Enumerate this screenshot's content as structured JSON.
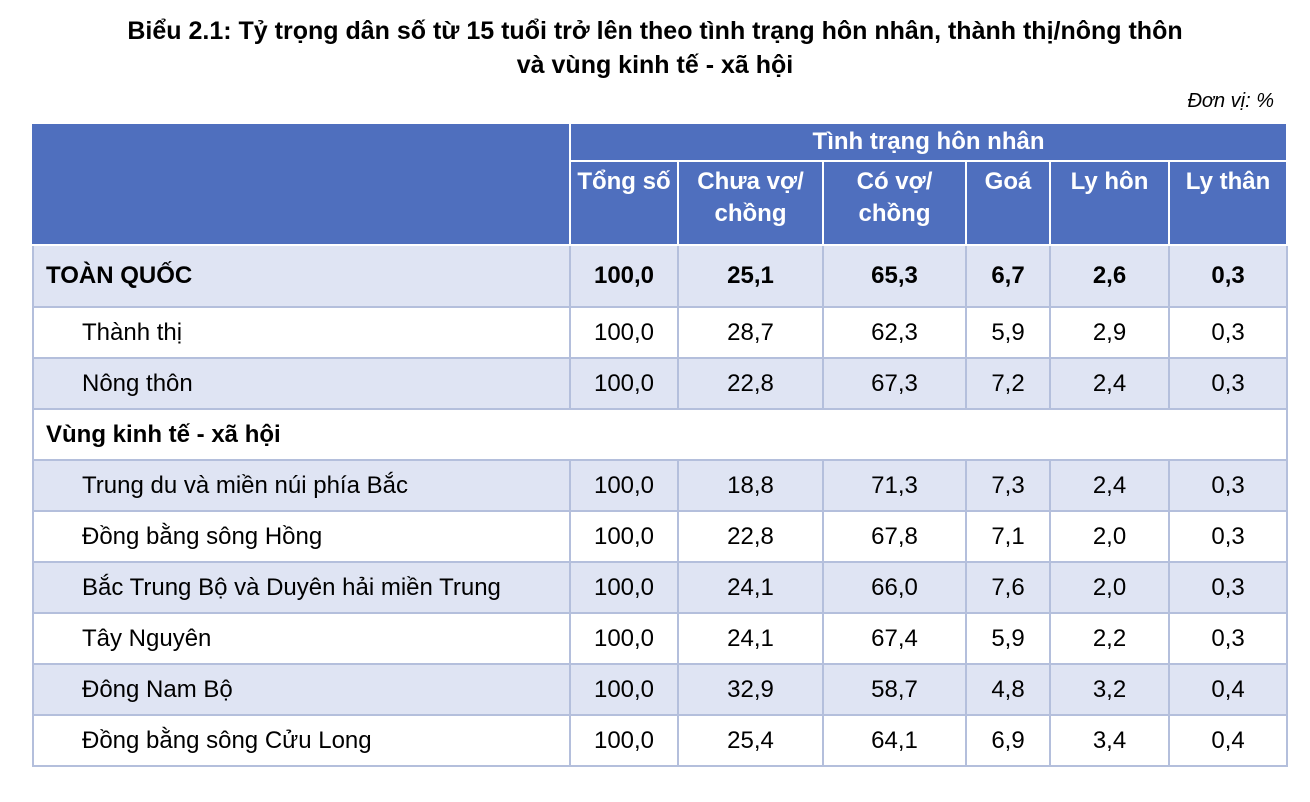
{
  "title_line1": "Biểu 2.1:  Tỷ trọng dân số từ 15 tuổi trở lên theo tình trạng hôn nhân, thành thị/nông thôn",
  "title_line2": "và vùng kinh tế - xã hội",
  "unit": "Đơn vị: %",
  "header": {
    "group": "Tình trạng hôn nhân",
    "columns": [
      "Tổng số",
      "Chưa vợ/ chồng",
      "Có vợ/ chồng",
      "Goá",
      "Ly hôn",
      "Ly thân"
    ]
  },
  "rows": [
    {
      "label": "TOÀN QUỐC",
      "values": [
        "100,0",
        "25,1",
        "65,3",
        "6,7",
        "2,6",
        "0,3"
      ]
    },
    {
      "label": "Thành thị",
      "values": [
        "100,0",
        "28,7",
        "62,3",
        "5,9",
        "2,9",
        "0,3"
      ]
    },
    {
      "label": "Nông thôn",
      "values": [
        "100,0",
        "22,8",
        "67,3",
        "7,2",
        "2,4",
        "0,3"
      ]
    },
    {
      "label": "Vùng kinh tế - xã hội",
      "values": []
    },
    {
      "label": "Trung du và miền núi phía Bắc",
      "values": [
        "100,0",
        "18,8",
        "71,3",
        "7,3",
        "2,4",
        "0,3"
      ]
    },
    {
      "label": "Đồng bằng sông Hồng",
      "values": [
        "100,0",
        "22,8",
        "67,8",
        "7,1",
        "2,0",
        "0,3"
      ]
    },
    {
      "label": "Bắc Trung Bộ và Duyên hải miền Trung",
      "values": [
        "100,0",
        "24,1",
        "66,0",
        "7,6",
        "2,0",
        "0,3"
      ]
    },
    {
      "label": "Tây Nguyên",
      "values": [
        "100,0",
        "24,1",
        "67,4",
        "5,9",
        "2,2",
        "0,3"
      ]
    },
    {
      "label": "Đông Nam Bộ",
      "values": [
        "100,0",
        "32,9",
        "58,7",
        "4,8",
        "3,2",
        "0,4"
      ]
    },
    {
      "label": "Đồng bằng sông Cửu Long",
      "values": [
        "100,0",
        "25,4",
        "64,1",
        "6,9",
        "3,4",
        "0,4"
      ]
    }
  ],
  "colors": {
    "header_bg": "#4f6fbe",
    "row_shade": "#dfe4f3",
    "grid": "#b4bfdc"
  }
}
